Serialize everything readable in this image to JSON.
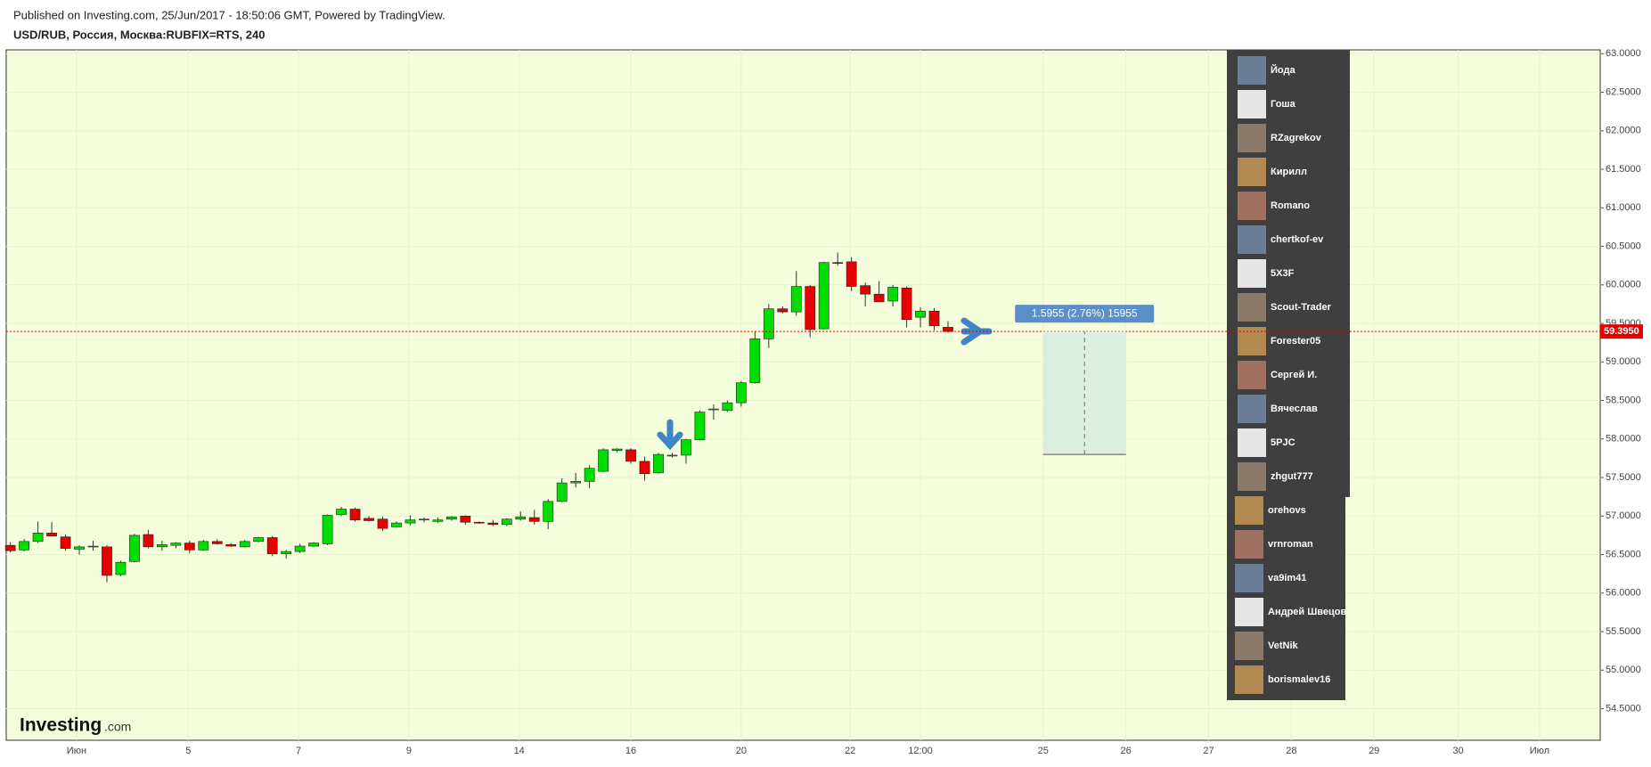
{
  "header": {
    "published": "Published on Investing.com, 25/Jun/2017 - 18:50:06 GMT, Powered by TradingView.",
    "symbol": "USD/RUB, Россия, Москва:RUBFIX=RTS, 240"
  },
  "logo": {
    "name": "Investing",
    "suffix": ".com"
  },
  "chart_data": {
    "type": "candlestick",
    "open": [
      56.62,
      56.56,
      56.67,
      56.78,
      56.73,
      56.57,
      56.6,
      56.6,
      56.24,
      56.41,
      56.76,
      56.6,
      56.62,
      56.65,
      56.56,
      56.67,
      56.63,
      56.6,
      56.67,
      56.72,
      56.51,
      56.54,
      56.61,
      56.64,
      57.02,
      57.09,
      56.97,
      56.96,
      56.86,
      56.91,
      56.95,
      56.93,
      56.96,
      57.0,
      56.92,
      56.91,
      56.89,
      56.96,
      56.98,
      56.93,
      57.19,
      57.43,
      57.45,
      57.58,
      57.85,
      57.86,
      57.71,
      57.56,
      57.78,
      57.79,
      57.99,
      58.38,
      58.37,
      58.47,
      58.73,
      59.3,
      59.69,
      59.65,
      59.98,
      59.43,
      60.29,
      60.3,
      59.99,
      59.88,
      59.79,
      59.96,
      59.58,
      59.66,
      59.45
    ],
    "high": [
      56.66,
      56.7,
      56.93,
      56.92,
      56.76,
      56.62,
      56.68,
      56.62,
      56.42,
      56.77,
      56.82,
      56.68,
      56.66,
      56.68,
      56.69,
      56.7,
      56.65,
      56.69,
      56.73,
      56.74,
      56.56,
      56.64,
      56.66,
      57.02,
      57.12,
      57.11,
      57.0,
      56.99,
      56.93,
      57.01,
      56.98,
      56.98,
      57.0,
      57.01,
      56.93,
      56.95,
      56.97,
      57.06,
      57.08,
      57.22,
      57.49,
      57.56,
      57.66,
      57.88,
      57.88,
      57.88,
      57.77,
      57.82,
      57.82,
      58.0,
      58.37,
      58.45,
      58.5,
      58.75,
      59.4,
      59.75,
      59.72,
      60.18,
      60.0,
      60.3,
      60.42,
      60.36,
      60.03,
      60.05,
      60.0,
      59.98,
      59.71,
      59.7,
      59.53
    ],
    "low": [
      56.53,
      56.54,
      56.65,
      56.74,
      56.55,
      56.5,
      56.55,
      56.14,
      56.22,
      56.4,
      56.58,
      56.55,
      56.58,
      56.52,
      56.55,
      56.63,
      56.6,
      56.59,
      56.66,
      56.48,
      56.45,
      56.52,
      56.6,
      56.62,
      57.0,
      56.93,
      56.93,
      56.81,
      56.85,
      56.88,
      56.92,
      56.91,
      56.94,
      56.89,
      56.9,
      56.87,
      56.87,
      56.94,
      56.89,
      56.83,
      57.18,
      57.37,
      57.36,
      57.57,
      57.83,
      57.68,
      57.46,
      57.55,
      57.76,
      57.68,
      57.98,
      58.25,
      58.35,
      58.42,
      58.72,
      59.18,
      59.63,
      59.6,
      59.32,
      59.42,
      60.25,
      59.92,
      59.72,
      59.78,
      59.72,
      59.45,
      59.45,
      59.41,
      59.38
    ],
    "close": [
      56.55,
      56.67,
      56.78,
      56.74,
      56.58,
      56.6,
      56.61,
      56.23,
      56.4,
      56.75,
      56.6,
      56.63,
      56.65,
      56.56,
      56.67,
      56.64,
      56.61,
      56.67,
      56.72,
      56.51,
      56.54,
      56.61,
      56.65,
      57.01,
      57.09,
      56.95,
      56.94,
      56.84,
      56.91,
      56.95,
      56.96,
      56.95,
      56.99,
      56.92,
      56.91,
      56.89,
      56.96,
      56.99,
      56.93,
      57.19,
      57.43,
      57.45,
      57.62,
      57.86,
      57.87,
      57.71,
      57.55,
      57.8,
      57.79,
      57.99,
      58.35,
      58.39,
      58.47,
      58.73,
      59.3,
      59.69,
      59.65,
      59.98,
      59.42,
      60.29,
      60.28,
      59.98,
      59.88,
      59.78,
      59.97,
      59.55,
      59.66,
      59.47,
      59.395
    ],
    "up_color": "#00dd00",
    "down_color": "#e60000",
    "xlim": [
      -0.3,
      115.3
    ],
    "xticks": [
      {
        "value": 4.8,
        "label": "Июн"
      },
      {
        "value": 12.9,
        "label": "5"
      },
      {
        "value": 20.9,
        "label": "7"
      },
      {
        "value": 28.9,
        "label": "9"
      },
      {
        "value": 36.9,
        "label": "14"
      },
      {
        "value": 45.0,
        "label": "16"
      },
      {
        "value": 53.0,
        "label": "20"
      },
      {
        "value": 60.9,
        "label": "22"
      },
      {
        "value": 66.0,
        "label": "12:00"
      },
      {
        "value": 74.9,
        "label": "25"
      },
      {
        "value": 80.9,
        "label": "26"
      },
      {
        "value": 86.9,
        "label": "27"
      },
      {
        "value": 92.9,
        "label": "28"
      },
      {
        "value": 98.9,
        "label": "29"
      },
      {
        "value": 105.0,
        "label": "30"
      },
      {
        "value": 110.9,
        "label": "Июл"
      }
    ],
    "ylim": [
      54.09,
      63.05
    ],
    "yticks": [
      {
        "value": 54.5,
        "label": "54.5000"
      },
      {
        "value": 55,
        "label": "55.0000"
      },
      {
        "value": 55.5,
        "label": "55.5000"
      },
      {
        "value": 56,
        "label": "56.0000"
      },
      {
        "value": 56.5,
        "label": "56.5000"
      },
      {
        "value": 57,
        "label": "57.0000"
      },
      {
        "value": 57.5,
        "label": "57.5000"
      },
      {
        "value": 58,
        "label": "58.0000"
      },
      {
        "value": 58.5,
        "label": "58.5000"
      },
      {
        "value": 59,
        "label": "59.0000"
      },
      {
        "value": 59.5,
        "label": "59.5000"
      },
      {
        "value": 60,
        "label": "60.0000"
      },
      {
        "value": 60.5,
        "label": "60.5000"
      },
      {
        "value": 61,
        "label": "61.0000"
      },
      {
        "value": 61.5,
        "label": "61.5000"
      },
      {
        "value": 62,
        "label": "62.0000"
      },
      {
        "value": 62.5,
        "label": "62.5000"
      },
      {
        "value": 63,
        "label": "63.0000"
      }
    ],
    "grid": true,
    "last_price": {
      "value": 59.395,
      "label": "59.3950",
      "color": "#e60000"
    },
    "measure": {
      "from": 57.7995,
      "to": 59.395,
      "x_from": 74.9,
      "x_to": 80.9,
      "label": "1.5955 (2.76%) 15955"
    }
  },
  "overlay": {
    "users": [
      "Йода",
      "Гоша",
      "RZagrekov",
      "Кирилл",
      "Romano",
      "chertkof-ev",
      "5X3F",
      "Scout-Trader",
      "Forester05",
      "Сергей И.",
      "Вячеслав",
      "5PJC",
      "zhgut777",
      "orehovs",
      "vrnroman",
      "va9im41",
      "Андрей Швецов",
      "VetNik",
      "borismalev16"
    ]
  }
}
